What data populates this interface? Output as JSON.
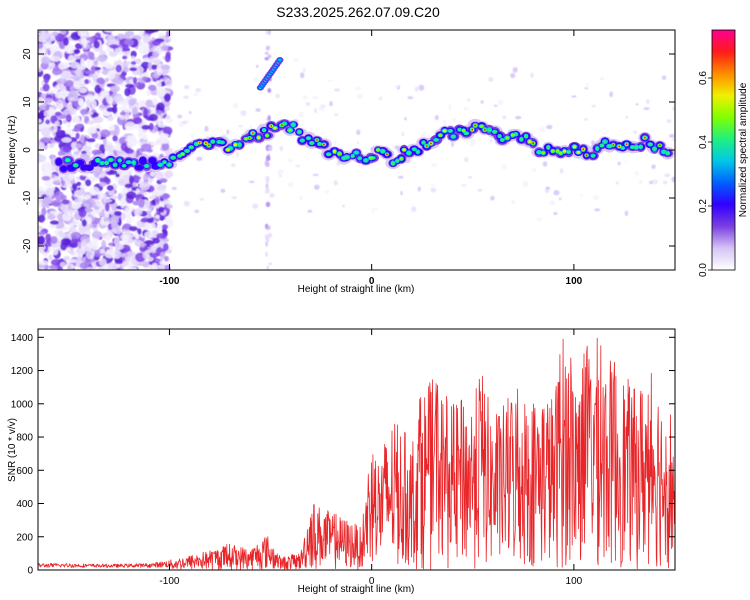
{
  "title": "S233.2025.262.07.09.C20",
  "chart_data": [
    {
      "type": "heatmap",
      "name": "spectrogram",
      "xlabel": "Height of straight line (km)",
      "ylabel": "Frequency (Hz)",
      "xlim": [
        -165,
        150
      ],
      "ylim": [
        -25,
        25
      ],
      "xticks": [
        -100,
        0,
        100
      ],
      "xtick_labels": [
        "-100",
        "0",
        "100"
      ],
      "yticks": [
        -20,
        -10,
        0,
        10,
        20
      ],
      "ytick_labels": [
        "-20",
        "-10",
        "0",
        "10",
        "20"
      ],
      "ridge": {
        "x": [
          -160,
          -150,
          -140,
          -130,
          -120,
          -110,
          -105,
          -100,
          -95,
          -90,
          -85,
          -80,
          -75,
          -70,
          -65,
          -60,
          -55,
          -50,
          -45,
          -40,
          -35,
          -30,
          -25,
          -20,
          -15,
          -10,
          -5,
          0,
          5,
          10,
          15,
          20,
          25,
          30,
          35,
          40,
          45,
          50,
          55,
          60,
          65,
          70,
          75,
          80,
          85,
          90,
          95,
          100,
          105,
          110,
          115,
          120,
          125,
          130,
          135,
          140,
          145,
          150
        ],
        "y": [
          -3,
          -3,
          -3,
          -3,
          -3,
          -3,
          -3,
          -2,
          -1,
          0,
          1,
          2,
          1,
          0,
          2,
          3,
          3,
          4,
          6,
          5,
          3,
          2,
          1,
          0,
          -1,
          -1,
          -2,
          -1,
          -1,
          -2,
          -1,
          0,
          1,
          2,
          3,
          3,
          4,
          4,
          5,
          3,
          2,
          3,
          2,
          1,
          0,
          1,
          0,
          0,
          -1,
          0,
          1,
          1,
          0,
          1,
          2,
          1,
          0,
          -1
        ]
      },
      "secondary_ridge": {
        "x": [
          -55,
          -50,
          -45
        ],
        "y": [
          13,
          16,
          19
        ]
      },
      "colorbar": {
        "label": "Normalized spectral amplitude",
        "range": [
          0,
          0.75
        ],
        "ticks": [
          0.0,
          0.2,
          0.4,
          0.6
        ],
        "tick_labels": [
          "0.0",
          "0.2",
          "0.4",
          "0.6"
        ],
        "colors": [
          "#ffffff",
          "#d6c4f5",
          "#7b3fe0",
          "#3000ff",
          "#0060ff",
          "#00c8e6",
          "#20f080",
          "#80ff00",
          "#f0f000",
          "#ff8c00",
          "#ff1a1a",
          "#ff0090"
        ]
      }
    },
    {
      "type": "line",
      "name": "snr",
      "xlabel": "Height of straight line (km)",
      "ylabel": "SNR (10 * v/v)",
      "xlim": [
        -165,
        150
      ],
      "ylim": [
        0,
        1450
      ],
      "xticks": [
        -100,
        0,
        100
      ],
      "xtick_labels": [
        "-100",
        "0",
        "100"
      ],
      "yticks": [
        0,
        200,
        400,
        600,
        800,
        1000,
        1200,
        1400
      ],
      "ytick_labels": [
        "0",
        "200",
        "400",
        "600",
        "800",
        "1000",
        "1200",
        "1400"
      ],
      "color": "#e8262a",
      "envelope": {
        "x": [
          -165,
          -150,
          -130,
          -110,
          -100,
          -90,
          -80,
          -70,
          -60,
          -52,
          -45,
          -40,
          -35,
          -30,
          -25,
          -20,
          -15,
          -10,
          -5,
          0,
          2,
          10,
          20,
          25,
          30,
          40,
          50,
          55,
          60,
          70,
          80,
          85,
          90,
          95,
          100,
          105,
          110,
          115,
          120,
          130,
          140,
          145,
          148,
          150
        ],
        "y": [
          40,
          40,
          35,
          40,
          60,
          90,
          120,
          160,
          130,
          220,
          80,
          90,
          110,
          430,
          380,
          350,
          320,
          300,
          250,
          850,
          650,
          900,
          800,
          1100,
          1150,
          1000,
          1050,
          1200,
          900,
          1100,
          1050,
          1100,
          1050,
          1450,
          1200,
          1300,
          1450,
          1300,
          1250,
          1100,
          1200,
          1000,
          1000,
          700
        ]
      }
    }
  ]
}
